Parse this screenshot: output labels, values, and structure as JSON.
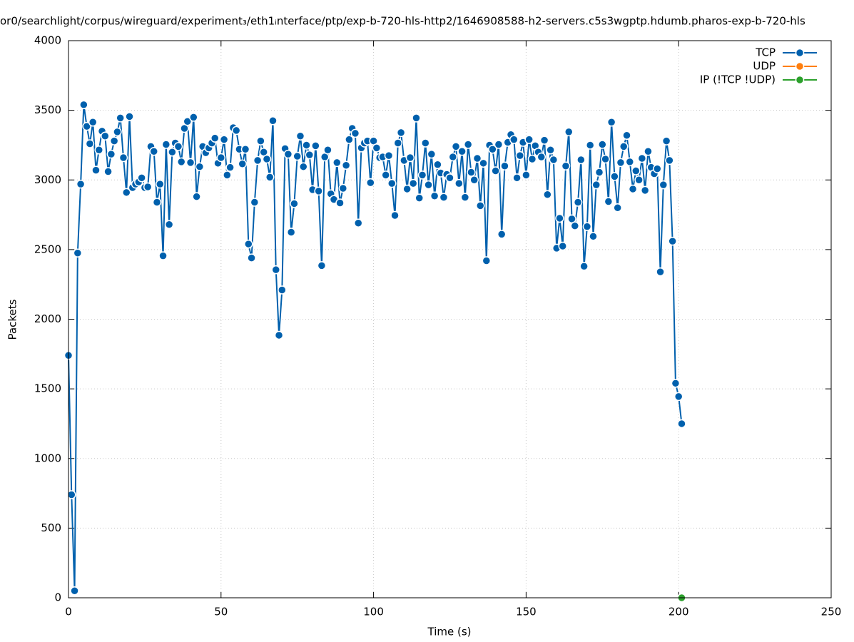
{
  "chart_data": {
    "type": "line",
    "title": "or0/searchlight/corpus/wireguard/experiment₃/eth1ᵢnterface/ptp/exp-b-720-hls-http2/1646908588-h2-servers.c5s3wgptp.hdumb.pharos-exp-b-720-hls",
    "xlabel": "Time (s)",
    "ylabel": "Packets",
    "xlim": [
      0,
      250
    ],
    "xticks": [
      0,
      50,
      100,
      150,
      200,
      250
    ],
    "ylim": [
      0,
      4000
    ],
    "yticks": [
      0,
      500,
      1000,
      1500,
      2000,
      2500,
      3000,
      3500,
      4000
    ],
    "grid": true,
    "legend": "top-right",
    "series": [
      {
        "name": "TCP",
        "color": "#0060ad",
        "x": [
          0,
          1,
          2,
          3,
          4,
          5,
          6,
          7,
          8,
          9,
          10,
          11,
          12,
          13,
          14,
          15,
          16,
          17,
          18,
          19,
          20,
          21,
          22,
          23,
          24,
          25,
          26,
          27,
          28,
          29,
          30,
          31,
          32,
          33,
          34,
          35,
          36,
          37,
          38,
          39,
          40,
          41,
          42,
          43,
          44,
          45,
          46,
          47,
          48,
          49,
          50,
          51,
          52,
          53,
          54,
          55,
          56,
          57,
          58,
          59,
          60,
          61,
          62,
          63,
          64,
          65,
          66,
          67,
          68,
          69,
          70,
          71,
          72,
          73,
          74,
          75,
          76,
          77,
          78,
          79,
          80,
          81,
          82,
          83,
          84,
          85,
          86,
          87,
          88,
          89,
          90,
          91,
          92,
          93,
          94,
          95,
          96,
          97,
          98,
          99,
          100,
          101,
          102,
          103,
          104,
          105,
          106,
          107,
          108,
          109,
          110,
          111,
          112,
          113,
          114,
          115,
          116,
          117,
          118,
          119,
          120,
          121,
          122,
          123,
          124,
          125,
          126,
          127,
          128,
          129,
          130,
          131,
          132,
          133,
          134,
          135,
          136,
          137,
          138,
          139,
          140,
          141,
          142,
          143,
          144,
          145,
          146,
          147,
          148,
          149,
          150,
          151,
          152,
          153,
          154,
          155,
          156,
          157,
          158,
          159,
          160,
          161,
          162,
          163,
          164,
          165,
          166,
          167,
          168,
          169,
          170,
          171,
          172,
          173,
          174,
          175,
          176,
          177,
          178,
          179,
          180,
          181,
          182,
          183,
          184,
          185,
          186,
          187,
          188,
          189,
          190,
          191,
          192,
          193,
          194,
          195,
          196,
          197,
          198,
          199,
          200,
          201
        ],
        "values": [
          1740,
          740,
          50,
          2475,
          2970,
          3540,
          3385,
          3260,
          3415,
          3070,
          3215,
          3350,
          3315,
          3060,
          3185,
          3280,
          3345,
          3445,
          3160,
          2910,
          3455,
          2945,
          2970,
          2985,
          3015,
          2945,
          2950,
          3240,
          3205,
          2840,
          2970,
          2455,
          3255,
          2680,
          3200,
          3265,
          3240,
          3130,
          3370,
          3420,
          3125,
          3450,
          2880,
          3095,
          3240,
          3195,
          3230,
          3265,
          3300,
          3120,
          3160,
          3290,
          3035,
          3090,
          3375,
          3355,
          3220,
          3115,
          3220,
          2540,
          2440,
          2840,
          3140,
          3280,
          3200,
          3150,
          3020,
          3425,
          2355,
          1885,
          2210,
          3225,
          3185,
          2625,
          2830,
          3170,
          3315,
          3095,
          3250,
          3180,
          2930,
          3245,
          2920,
          2385,
          3165,
          3215,
          2900,
          2860,
          3125,
          2835,
          2940,
          3105,
          3290,
          3370,
          3335,
          2690,
          3230,
          3265,
          3280,
          2980,
          3280,
          3230,
          3160,
          3165,
          3035,
          3175,
          2975,
          2745,
          3265,
          3340,
          3140,
          2935,
          3160,
          2975,
          3445,
          2870,
          3035,
          3265,
          2965,
          3185,
          2885,
          3110,
          3050,
          2875,
          3040,
          3015,
          3165,
          3240,
          2975,
          3205,
          2875,
          3255,
          3055,
          3000,
          3155,
          2815,
          3120,
          2420,
          3250,
          3220,
          3065,
          3255,
          2610,
          3100,
          3270,
          3325,
          3290,
          3015,
          3175,
          3270,
          3035,
          3290,
          3150,
          3245,
          3200,
          3165,
          3285,
          2895,
          3215,
          3145,
          2510,
          2725,
          2525,
          3100,
          3345,
          2720,
          2670,
          2840,
          3145,
          2380,
          2665,
          3250,
          2595,
          2965,
          3055,
          3255,
          3150,
          2845,
          3415,
          3025,
          2800,
          3125,
          3240,
          3320,
          3130,
          2935,
          3065,
          3000,
          3155,
          2925,
          3205,
          3090,
          3045,
          3080,
          2340,
          2965,
          3280,
          3140,
          2560,
          1540,
          1445,
          1250
        ]
      },
      {
        "name": "UDP",
        "color": "#ff7f0e",
        "x": [],
        "values": []
      },
      {
        "name": "IP (!TCP  !UDP)",
        "color": "#2ca02c",
        "x": [
          201
        ],
        "values": [
          0
        ]
      }
    ]
  }
}
